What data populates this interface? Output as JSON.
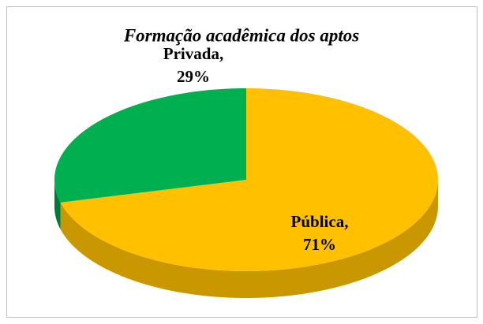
{
  "chart_data": {
    "type": "pie",
    "title": "Formação acadêmica dos aptos",
    "categories": [
      "Pública,",
      "Privada,"
    ],
    "values": [
      71,
      29
    ],
    "value_labels": [
      "71%",
      "29%"
    ],
    "colors": [
      "#ffc000",
      "#00b050"
    ],
    "side_colors": [
      "#c99700",
      "#007a38"
    ]
  }
}
